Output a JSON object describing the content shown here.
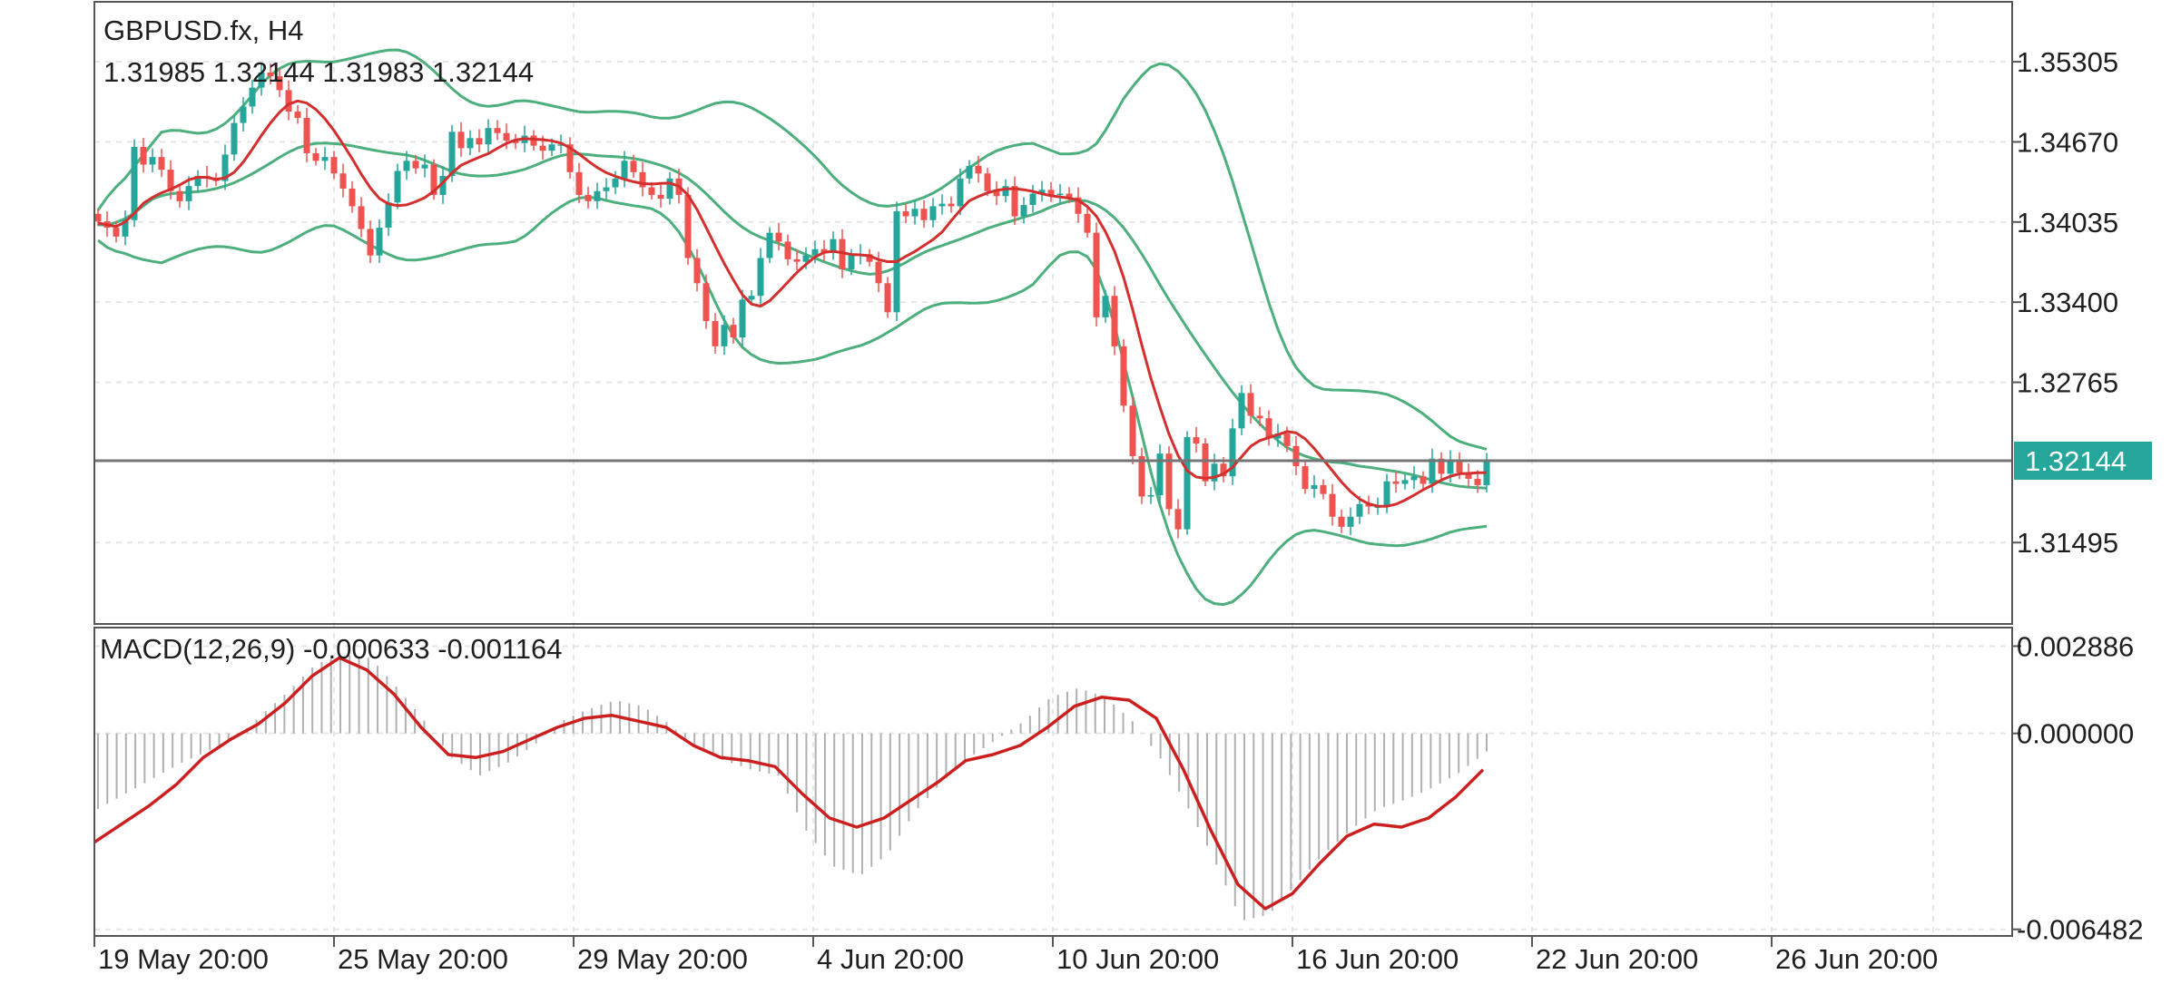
{
  "colors": {
    "up_candle": "#26a69a",
    "down_candle": "#ef5350",
    "bollinger": "#4caf7d",
    "moving_average": "#d32f2f",
    "macd_signal": "#cc1f1f",
    "macd_histogram": "#b0b0b0",
    "price_line": "#757575",
    "price_badge": "#26a69a",
    "grid": "#e6e6e6",
    "frame": "#555555"
  },
  "header": {
    "symbol_timeframe": "GBPUSD.fx, H4",
    "ohlc": "1.31985 1.32144 1.31983 1.32144"
  },
  "macd_panel": {
    "title": "MACD(12,26,9) -0.000633 -0.001164"
  },
  "price_axis": {
    "ticks": [
      "1.35305",
      "1.34670",
      "1.34035",
      "1.33400",
      "1.32765",
      "1.31495"
    ],
    "current_price_label": "1.32144"
  },
  "macd_axis": {
    "ticks": [
      "0.002886",
      "0.000000",
      "-0.006482"
    ]
  },
  "time_axis": {
    "ticks": [
      "19 May 20:00",
      "25 May 20:00",
      "29 May 20:00",
      "4 Jun 20:00",
      "10 Jun 20:00",
      "16 Jun 20:00",
      "22 Jun 20:00",
      "26 Jun 20:00"
    ]
  },
  "chart_data": [
    {
      "type": "candlestick",
      "symbol": "GBPUSD.fx",
      "timeframe": "H4",
      "indicators": [
        "Bollinger Bands",
        "Moving Average"
      ],
      "y_ticks": [
        1.35305,
        1.3467,
        1.34035,
        1.334,
        1.32765,
        1.31495
      ],
      "ylim": [
        1.3085,
        1.3578
      ],
      "current_price": 1.32144,
      "x_ticks": [
        "19 May 20:00",
        "25 May 20:00",
        "29 May 20:00",
        "4 Jun 20:00",
        "10 Jun 20:00",
        "16 Jun 20:00",
        "22 Jun 20:00",
        "26 Jun 20:00"
      ],
      "close_series": [
        1.3404,
        1.3399,
        1.3392,
        1.3405,
        1.3463,
        1.3449,
        1.3455,
        1.3445,
        1.3428,
        1.342,
        1.3432,
        1.344,
        1.3438,
        1.3436,
        1.3457,
        1.3482,
        1.3495,
        1.351,
        1.3522,
        1.3519,
        1.3508,
        1.3491,
        1.3486,
        1.3458,
        1.3452,
        1.3455,
        1.3442,
        1.343,
        1.3416,
        1.3398,
        1.3377,
        1.3399,
        1.3419,
        1.3444,
        1.3452,
        1.3446,
        1.3449,
        1.3425,
        1.344,
        1.3475,
        1.3462,
        1.347,
        1.3465,
        1.3478,
        1.3474,
        1.3468,
        1.3466,
        1.3472,
        1.3464,
        1.346,
        1.3465,
        1.3465,
        1.3443,
        1.3425,
        1.342,
        1.3428,
        1.3431,
        1.3438,
        1.3452,
        1.3443,
        1.3431,
        1.3425,
        1.3422,
        1.3438,
        1.3425,
        1.3375,
        1.3355,
        1.3325,
        1.3305,
        1.3322,
        1.3312,
        1.3342,
        1.3345,
        1.3375,
        1.3395,
        1.3388,
        1.3374,
        1.3372,
        1.3377,
        1.3382,
        1.3379,
        1.339,
        1.3366,
        1.3377,
        1.3378,
        1.3372,
        1.3355,
        1.3332,
        1.3412,
        1.3408,
        1.3414,
        1.3405,
        1.3416,
        1.3418,
        1.3416,
        1.3438,
        1.3448,
        1.3442,
        1.3428,
        1.3424,
        1.3432,
        1.3408,
        1.3417,
        1.3426,
        1.3429,
        1.3425,
        1.3426,
        1.3423,
        1.341,
        1.3395,
        1.3328,
        1.3345,
        1.3305,
        1.3258,
        1.3218,
        1.3186,
        1.3187,
        1.322,
        1.3176,
        1.316,
        1.3233,
        1.3228,
        1.3198,
        1.3212,
        1.3202,
        1.324,
        1.3268,
        1.325,
        1.3248,
        1.3232,
        1.3236,
        1.3226,
        1.321,
        1.3192,
        1.3195,
        1.3188,
        1.317,
        1.3162,
        1.317,
        1.318,
        1.3178,
        1.3178,
        1.3198,
        1.3196,
        1.3199,
        1.3202,
        1.3196,
        1.3216,
        1.3204,
        1.3215,
        1.3205,
        1.32,
        1.3195,
        1.3214
      ]
    },
    {
      "type": "line",
      "title": "MACD(12,26,9) -0.000633 -0.001164",
      "y_ticks": [
        0.002886,
        0.0,
        -0.006482
      ],
      "ylim": [
        -0.0067,
        0.0035
      ],
      "series": [
        {
          "name": "Histogram",
          "style": "bars",
          "values": [
            -0.0025,
            -0.002,
            -0.0015,
            -0.001,
            -0.0006,
            -0.0002,
            0.0006,
            0.0014,
            0.0023,
            0.0026,
            0.0025,
            0.0015,
            0.0004,
            -0.0008,
            -0.0014,
            -0.001,
            -0.0004,
            0.0004,
            0.0008,
            0.0011,
            0.0009,
            0.0003,
            -0.0005,
            -0.0009,
            -0.0012,
            -0.0014,
            -0.0032,
            -0.0044,
            -0.0047,
            -0.004,
            -0.0026,
            -0.0016,
            -0.0008,
            -0.0002,
            0.0004,
            0.0012,
            0.0015,
            0.0012,
            0.0004,
            -0.0008,
            -0.0024,
            -0.0042,
            -0.0062,
            -0.006,
            -0.005,
            -0.004,
            -0.0032,
            -0.0025,
            -0.0022,
            -0.0018,
            -0.0013,
            -0.0006
          ]
        },
        {
          "name": "Signal",
          "style": "line",
          "values": [
            -0.0036,
            -0.003,
            -0.0024,
            -0.0017,
            -0.0008,
            -0.0002,
            0.0003,
            0.001,
            0.0019,
            0.0025,
            0.0021,
            0.0013,
            0.0002,
            -0.0007,
            -0.0008,
            -0.0006,
            -0.0002,
            0.0002,
            0.0005,
            0.0006,
            0.0004,
            0.0002,
            -0.0004,
            -0.0008,
            -0.0009,
            -0.0011,
            -0.002,
            -0.0028,
            -0.0031,
            -0.0028,
            -0.0022,
            -0.0016,
            -0.0009,
            -0.0007,
            -0.0004,
            0.0002,
            0.0009,
            0.0012,
            0.0011,
            0.0005,
            -0.0012,
            -0.0032,
            -0.005,
            -0.0058,
            -0.0053,
            -0.0043,
            -0.0034,
            -0.003,
            -0.0031,
            -0.0028,
            -0.0021,
            -0.0012
          ]
        }
      ]
    }
  ]
}
